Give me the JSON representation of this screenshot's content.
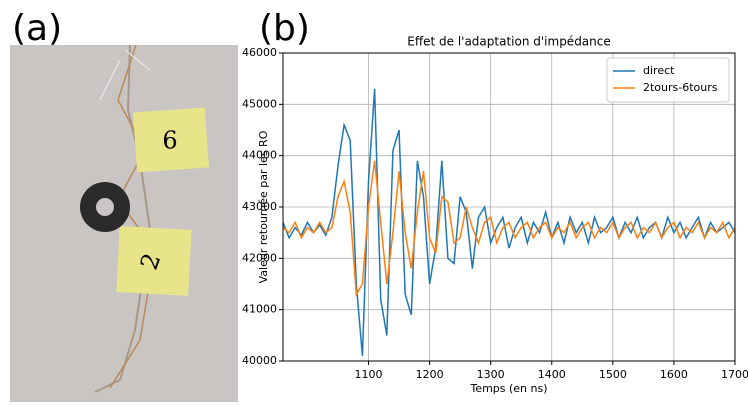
{
  "panel_labels": [
    "(a)",
    "(b)"
  ],
  "photo_labels": [
    "6",
    "2"
  ],
  "chart_data": {
    "type": "line",
    "title": "Effet de l'adaptation d'impédance",
    "xlabel": "Temps (en ns)",
    "ylabel": "Valeur retournée par les RO",
    "x": [
      960,
      970,
      980,
      990,
      1000,
      1010,
      1020,
      1030,
      1040,
      1050,
      1060,
      1070,
      1080,
      1090,
      1100,
      1110,
      1120,
      1130,
      1140,
      1150,
      1160,
      1170,
      1180,
      1190,
      1200,
      1210,
      1220,
      1230,
      1240,
      1250,
      1260,
      1270,
      1280,
      1290,
      1300,
      1310,
      1320,
      1330,
      1340,
      1350,
      1360,
      1370,
      1380,
      1390,
      1400,
      1410,
      1420,
      1430,
      1440,
      1450,
      1460,
      1470,
      1480,
      1490,
      1500,
      1510,
      1520,
      1530,
      1540,
      1550,
      1560,
      1570,
      1580,
      1590,
      1600,
      1610,
      1620,
      1630,
      1640,
      1650,
      1660,
      1670,
      1680,
      1690,
      1700
    ],
    "series": [
      {
        "name": "direct",
        "color": "#1f77b4",
        "values": [
          42700,
          42400,
          42600,
          42450,
          42700,
          42500,
          42650,
          42450,
          42800,
          43800,
          44600,
          44300,
          41500,
          40100,
          43500,
          45300,
          41200,
          40500,
          44100,
          44500,
          41300,
          40900,
          43900,
          43200,
          41500,
          42200,
          43900,
          42000,
          41900,
          43200,
          42900,
          41800,
          42800,
          43000,
          42300,
          42600,
          42800,
          42200,
          42600,
          42800,
          42300,
          42700,
          42500,
          42900,
          42400,
          42700,
          42300,
          42800,
          42500,
          42700,
          42300,
          42800,
          42500,
          42600,
          42800,
          42400,
          42700,
          42500,
          42800,
          42400,
          42600,
          42700,
          42400,
          42800,
          42500,
          42700,
          42400,
          42600,
          42800,
          42400,
          42700,
          42500,
          42600,
          42700,
          42500
        ]
      },
      {
        "name": "2tours-6tours",
        "color": "#ff7f0e",
        "values": [
          42600,
          42500,
          42700,
          42400,
          42600,
          42500,
          42700,
          42500,
          42600,
          43200,
          43500,
          42900,
          41300,
          41500,
          43000,
          43900,
          42700,
          41500,
          42500,
          43700,
          42500,
          41800,
          42900,
          43700,
          42400,
          42100,
          43200,
          43100,
          42300,
          42400,
          43000,
          42600,
          42300,
          42700,
          42800,
          42300,
          42600,
          42700,
          42400,
          42600,
          42700,
          42400,
          42600,
          42700,
          42400,
          42600,
          42500,
          42700,
          42400,
          42600,
          42700,
          42400,
          42600,
          42500,
          42700,
          42400,
          42600,
          42700,
          42400,
          42600,
          42500,
          42700,
          42400,
          42600,
          42700,
          42400,
          42600,
          42500,
          42700,
          42400,
          42600,
          42500,
          42700,
          42400,
          42600
        ]
      }
    ],
    "xlim": [
      960,
      1700
    ],
    "ylim": [
      40000,
      46000
    ],
    "xticks": [
      1100,
      1200,
      1300,
      1400,
      1500,
      1600,
      1700
    ],
    "yticks": [
      40000,
      41000,
      42000,
      43000,
      44000,
      45000,
      46000
    ],
    "grid": true,
    "legend": "upper right"
  }
}
